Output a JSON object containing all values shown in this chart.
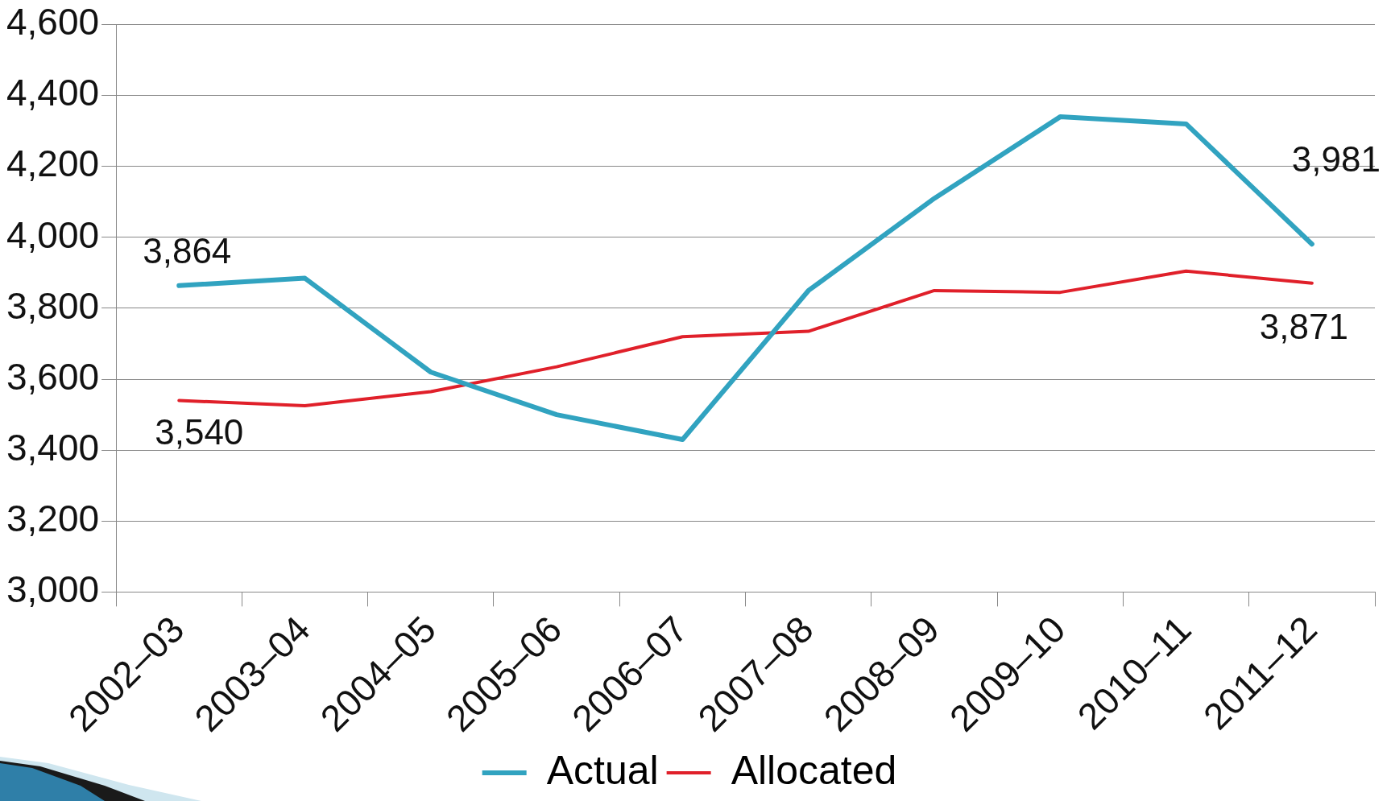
{
  "chart_data": {
    "type": "line",
    "categories": [
      "2002–03",
      "2003–04",
      "2004–05",
      "2005–06",
      "2006–07",
      "2007–08",
      "2008–09",
      "2009–10",
      "2010–11",
      "2011–12"
    ],
    "series": [
      {
        "name": "Actual",
        "color": "#31a3c0",
        "values": [
          3864,
          3885,
          3620,
          3500,
          3430,
          3850,
          4110,
          4340,
          4320,
          3981
        ],
        "value_labels": [
          "3,864",
          null,
          null,
          null,
          null,
          null,
          null,
          null,
          null,
          "3,981"
        ]
      },
      {
        "name": "Allocated",
        "color": "#e0202a",
        "values": [
          3540,
          3525,
          3565,
          3635,
          3720,
          3735,
          3850,
          3845,
          3905,
          3871
        ],
        "value_labels": [
          "3,540",
          null,
          null,
          null,
          null,
          null,
          null,
          null,
          null,
          "3,871"
        ]
      }
    ],
    "ylim": [
      3000,
      4600
    ],
    "yticks": [
      {
        "value": 3000,
        "label": "3,000"
      },
      {
        "value": 3200,
        "label": "3,200"
      },
      {
        "value": 3400,
        "label": "3,400"
      },
      {
        "value": 3600,
        "label": "3,600"
      },
      {
        "value": 3800,
        "label": "3,800"
      },
      {
        "value": 4000,
        "label": "4,000"
      },
      {
        "value": 4200,
        "label": "4,200"
      },
      {
        "value": 4400,
        "label": "4,400"
      },
      {
        "value": 4600,
        "label": "4,600"
      }
    ],
    "grid": "y",
    "legend": "bottom",
    "marker": "none",
    "line_style": "solid"
  }
}
